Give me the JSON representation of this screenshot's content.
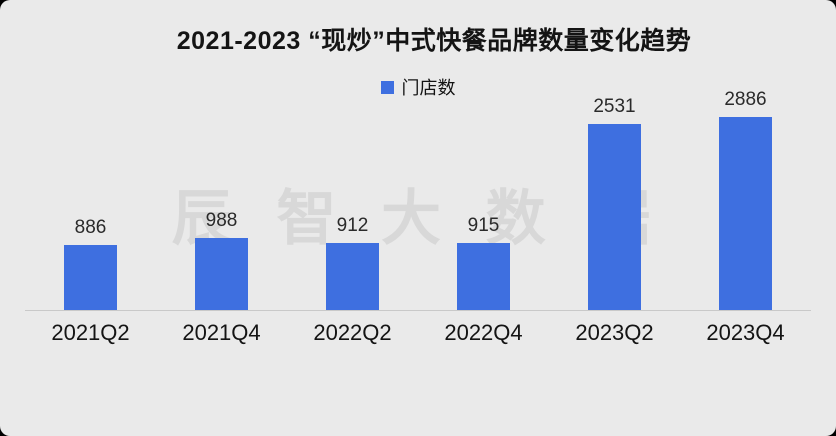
{
  "chart_data": {
    "type": "bar",
    "title": "2021-2023 “现炒”中式快餐品牌数量变化趋势",
    "legend": "门店数",
    "categories": [
      "2021Q2",
      "2021Q4",
      "2022Q2",
      "2022Q4",
      "2023Q2",
      "2023Q4"
    ],
    "values": [
      886,
      988,
      912,
      915,
      2531,
      2886
    ],
    "xlabel": "",
    "ylabel": "",
    "ylim": [
      0,
      3000
    ],
    "grid": false,
    "legend_position": "top-center",
    "data_labels": true
  },
  "watermark": {
    "text": "辰 智 大 数 据"
  },
  "colors": {
    "bar": "#3E6FE0",
    "background": "#EAEAEA",
    "watermark": "#D8D8D8",
    "axis_line": "#C9C9C9",
    "text": "#141414"
  }
}
